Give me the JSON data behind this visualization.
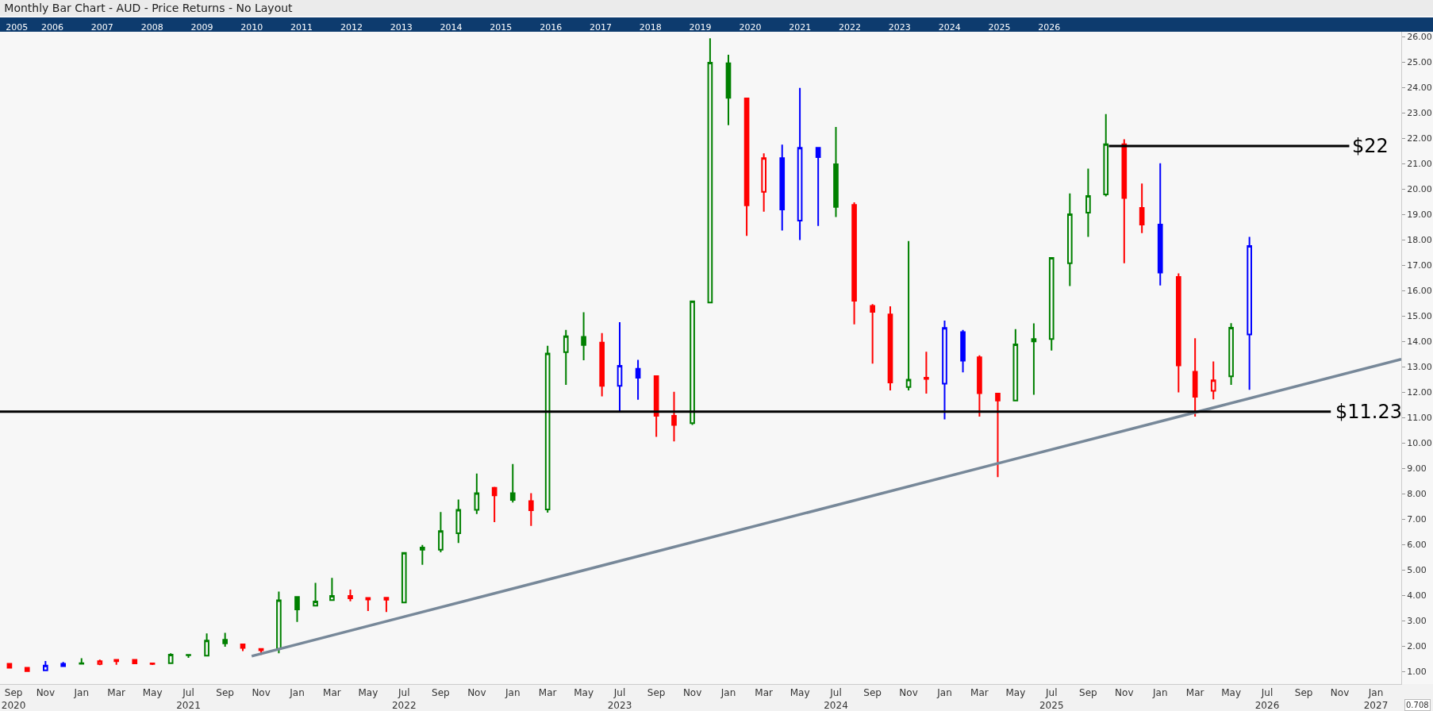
{
  "chart_data": {
    "type": "candlestick",
    "title": "Monthly Bar Chart - AUD - Price Returns - No Layout",
    "x": [
      "2020-09-15",
      "2020-10-15",
      "2020-11-15",
      "2020-12-15",
      "2021-01-15",
      "2021-02-15",
      "2021-03-15",
      "2021-04-15",
      "2021-05-15",
      "2021-06-15",
      "2021-07-15",
      "2021-08-15",
      "2021-09-15",
      "2021-10-15",
      "2021-11-15",
      "2021-12-15",
      "2022-01-15",
      "2022-02-15",
      "2022-03-15",
      "2022-04-15",
      "2022-05-15",
      "2022-06-15",
      "2022-07-15",
      "2022-08-15",
      "2022-09-15",
      "2022-10-15",
      "2022-11-15",
      "2022-12-15",
      "2023-01-15",
      "2023-02-15",
      "2023-03-15",
      "2023-04-15",
      "2023-05-15",
      "2023-06-15",
      "2023-07-15",
      "2023-08-15",
      "2023-09-15",
      "2023-10-15",
      "2023-11-15",
      "2023-12-15",
      "2024-01-15",
      "2024-02-15",
      "2024-03-15",
      "2024-04-15",
      "2024-05-15",
      "2024-06-15",
      "2024-07-15",
      "2024-08-15",
      "2024-09-15",
      "2024-10-15",
      "2024-11-15",
      "2024-12-15",
      "2025-01-15",
      "2025-02-15",
      "2025-03-15",
      "2025-04-15",
      "2025-05-15",
      "2025-06-15",
      "2025-07-15",
      "2025-08-15",
      "2025-09-15",
      "2025-10-15",
      "2025-11-15",
      "2025-12-15",
      "2026-01-15",
      "2026-02-15",
      "2026-03-15",
      "2026-04-15",
      "2026-05-15",
      "2026-06-15"
    ],
    "ohlc": [
      [
        1.3,
        1.32,
        1.13,
        1.14
      ],
      [
        1.14,
        1.15,
        1.0,
        1.01
      ],
      [
        1.04,
        1.41,
        1.02,
        1.23
      ],
      [
        1.2,
        1.37,
        1.18,
        1.3
      ],
      [
        1.3,
        1.52,
        1.29,
        1.32
      ],
      [
        1.29,
        1.46,
        1.24,
        1.4
      ],
      [
        1.4,
        1.46,
        1.26,
        1.45
      ],
      [
        1.45,
        1.46,
        1.3,
        1.31
      ],
      [
        1.29,
        1.33,
        1.25,
        1.31
      ],
      [
        1.32,
        1.71,
        1.3,
        1.66
      ],
      [
        1.65,
        1.66,
        1.53,
        1.63
      ],
      [
        1.62,
        2.49,
        1.6,
        2.21
      ],
      [
        2.24,
        2.52,
        1.97,
        2.1
      ],
      [
        2.06,
        2.07,
        1.8,
        1.92
      ],
      [
        1.88,
        1.9,
        1.65,
        1.83
      ],
      [
        1.88,
        4.14,
        1.71,
        3.8
      ],
      [
        3.93,
        3.95,
        2.95,
        3.44
      ],
      [
        3.59,
        4.49,
        3.57,
        3.75
      ],
      [
        3.81,
        4.68,
        3.79,
        3.97
      ],
      [
        3.97,
        4.22,
        3.76,
        3.88
      ],
      [
        3.83,
        3.92,
        3.38,
        3.89
      ],
      [
        3.9,
        3.93,
        3.34,
        3.82
      ],
      [
        3.71,
        5.69,
        3.69,
        5.67
      ],
      [
        5.88,
        5.98,
        5.2,
        5.79
      ],
      [
        5.79,
        7.28,
        5.69,
        6.53
      ],
      [
        6.44,
        7.77,
        6.06,
        7.36
      ],
      [
        7.36,
        8.79,
        7.2,
        8.02
      ],
      [
        8.23,
        8.27,
        6.88,
        7.93
      ],
      [
        8.02,
        9.17,
        7.65,
        7.75
      ],
      [
        7.71,
        8.02,
        6.73,
        7.35
      ],
      [
        7.38,
        13.83,
        7.25,
        13.52
      ],
      [
        13.58,
        14.45,
        12.29,
        14.2
      ],
      [
        14.18,
        15.15,
        13.26,
        13.86
      ],
      [
        13.95,
        14.33,
        11.83,
        12.25
      ],
      [
        12.25,
        14.76,
        11.21,
        13.04
      ],
      [
        12.92,
        13.27,
        11.7,
        12.57
      ],
      [
        12.63,
        12.65,
        10.24,
        11.07
      ],
      [
        11.07,
        12.01,
        10.06,
        10.71
      ],
      [
        10.78,
        15.6,
        10.71,
        15.58
      ],
      [
        15.53,
        25.94,
        15.5,
        24.98
      ],
      [
        24.96,
        25.29,
        22.52,
        23.6
      ],
      [
        23.57,
        23.6,
        18.16,
        19.36
      ],
      [
        19.89,
        21.41,
        19.11,
        21.22
      ],
      [
        21.22,
        21.75,
        18.37,
        19.2
      ],
      [
        18.76,
        23.99,
        17.99,
        21.63
      ],
      [
        21.63,
        21.65,
        18.55,
        21.26
      ],
      [
        20.98,
        22.45,
        18.9,
        19.3
      ],
      [
        19.38,
        19.48,
        14.67,
        15.6
      ],
      [
        15.4,
        15.47,
        13.12,
        15.16
      ],
      [
        15.06,
        15.38,
        12.07,
        12.38
      ],
      [
        12.2,
        17.95,
        12.07,
        12.49
      ],
      [
        12.57,
        13.59,
        11.94,
        12.52
      ],
      [
        12.33,
        14.82,
        10.93,
        14.53
      ],
      [
        14.37,
        14.45,
        12.78,
        13.24
      ],
      [
        13.37,
        13.45,
        11.04,
        11.96
      ],
      [
        11.94,
        11.96,
        8.65,
        11.67
      ],
      [
        11.67,
        14.48,
        11.64,
        13.88
      ],
      [
        14.0,
        14.71,
        11.9,
        14.09
      ],
      [
        14.09,
        17.32,
        13.64,
        17.29
      ],
      [
        17.08,
        19.83,
        16.18,
        19.01
      ],
      [
        19.07,
        20.81,
        18.12,
        19.73
      ],
      [
        19.79,
        22.96,
        19.71,
        21.77
      ],
      [
        21.77,
        21.96,
        17.08,
        19.65
      ],
      [
        19.26,
        20.22,
        18.27,
        18.6
      ],
      [
        18.6,
        21.02,
        16.2,
        16.71
      ],
      [
        16.54,
        16.68,
        11.99,
        13.05
      ],
      [
        12.8,
        14.12,
        11.04,
        11.82
      ],
      [
        12.05,
        13.21,
        11.72,
        12.47
      ],
      [
        12.62,
        14.72,
        12.29,
        14.54
      ],
      [
        14.27,
        18.12,
        12.09,
        17.76
      ]
    ],
    "colors": [
      "#ff0000",
      "#ff0000",
      "#0000ff",
      "#0000ff",
      "#008000",
      "#ff0000",
      "#ff0000",
      "#ff0000",
      "#ff0000",
      "#008000",
      "#008000",
      "#008000",
      "#008000",
      "#ff0000",
      "#ff0000",
      "#008000",
      "#008000",
      "#008000",
      "#008000",
      "#ff0000",
      "#ff0000",
      "#ff0000",
      "#008000",
      "#008000",
      "#008000",
      "#008000",
      "#008000",
      "#ff0000",
      "#008000",
      "#ff0000",
      "#008000",
      "#008000",
      "#008000",
      "#ff0000",
      "#0000ff",
      "#0000ff",
      "#ff0000",
      "#ff0000",
      "#008000",
      "#008000",
      "#008000",
      "#ff0000",
      "#ff0000",
      "#0000ff",
      "#0000ff",
      "#0000ff",
      "#008000",
      "#ff0000",
      "#ff0000",
      "#ff0000",
      "#008000",
      "#ff0000",
      "#0000ff",
      "#0000ff",
      "#ff0000",
      "#ff0000",
      "#008000",
      "#008000",
      "#008000",
      "#008000",
      "#008000",
      "#008000",
      "#ff0000",
      "#ff0000",
      "#0000ff",
      "#ff0000",
      "#ff0000",
      "#ff0000",
      "#008000",
      "#0000ff"
    ],
    "series": [
      {
        "type": "line",
        "color": "#778899",
        "x": [
          "2021-10-30",
          "2027-02-27"
        ],
        "values": [
          1.6,
          13.3
        ]
      },
      {
        "type": "line",
        "name": "$22",
        "color": "#000000",
        "x": [
          "2025-10-20",
          "2026-12-01"
        ],
        "values": [
          21.7,
          21.7
        ]
      }
    ],
    "ref_lines": [
      {
        "axis": "y",
        "value": 11.23,
        "label": "$11.23",
        "color": "#000000"
      }
    ],
    "xlim": [
      "2020-08-30",
      "2027-02-27"
    ],
    "xticks": [
      {
        "value": "2020-09-22",
        "label": "Sep\n2020"
      },
      {
        "value": "2020-11-15",
        "label": "Nov"
      },
      {
        "value": "2021-01-15",
        "label": "Jan"
      },
      {
        "value": "2021-03-15",
        "label": "Mar"
      },
      {
        "value": "2021-05-15",
        "label": "May"
      },
      {
        "value": "2021-07-15",
        "label": "Jul\n2021"
      },
      {
        "value": "2021-09-15",
        "label": "Sep"
      },
      {
        "value": "2021-11-15",
        "label": "Nov"
      },
      {
        "value": "2022-01-15",
        "label": "Jan"
      },
      {
        "value": "2022-03-15",
        "label": "Mar"
      },
      {
        "value": "2022-05-15",
        "label": "May"
      },
      {
        "value": "2022-07-15",
        "label": "Jul\n2022"
      },
      {
        "value": "2022-09-15",
        "label": "Sep"
      },
      {
        "value": "2022-11-15",
        "label": "Nov"
      },
      {
        "value": "2023-01-15",
        "label": "Jan"
      },
      {
        "value": "2023-03-15",
        "label": "Mar"
      },
      {
        "value": "2023-05-15",
        "label": "May"
      },
      {
        "value": "2023-07-15",
        "label": "Jul\n2023"
      },
      {
        "value": "2023-09-15",
        "label": "Sep"
      },
      {
        "value": "2023-11-15",
        "label": "Nov"
      },
      {
        "value": "2024-01-15",
        "label": "Jan"
      },
      {
        "value": "2024-03-15",
        "label": "Mar"
      },
      {
        "value": "2024-05-15",
        "label": "May"
      },
      {
        "value": "2024-07-15",
        "label": "Jul\n2024"
      },
      {
        "value": "2024-09-15",
        "label": "Sep"
      },
      {
        "value": "2024-11-15",
        "label": "Nov"
      },
      {
        "value": "2025-01-15",
        "label": "Jan"
      },
      {
        "value": "2025-03-15",
        "label": "Mar"
      },
      {
        "value": "2025-05-15",
        "label": "May"
      },
      {
        "value": "2025-07-15",
        "label": "Jul\n2025"
      },
      {
        "value": "2025-09-15",
        "label": "Sep"
      },
      {
        "value": "2025-11-15",
        "label": "Nov"
      },
      {
        "value": "2026-01-15",
        "label": "Jan"
      },
      {
        "value": "2026-03-15",
        "label": "Mar"
      },
      {
        "value": "2026-05-15",
        "label": "May"
      },
      {
        "value": "2026-07-15",
        "label": "Jul\n2026"
      },
      {
        "value": "2026-09-15",
        "label": "Sep"
      },
      {
        "value": "2026-11-15",
        "label": "Nov"
      },
      {
        "value": "2027-01-15",
        "label": "Jan\n2027"
      }
    ],
    "x2lim": [
      "2005-03-13",
      "2033-04-25"
    ],
    "x2ticks": [
      {
        "value": "2005-07-15",
        "label": "2005"
      },
      {
        "value": "2006-04",
        "label": "2006"
      },
      {
        "value": "2007-04",
        "label": "2007"
      },
      {
        "value": "2008-04",
        "label": "2008"
      },
      {
        "value": "2009-04",
        "label": "2009"
      },
      {
        "value": "2010-04",
        "label": "2010"
      },
      {
        "value": "2011-04",
        "label": "2011"
      },
      {
        "value": "2012-04",
        "label": "2012"
      },
      {
        "value": "2013-04",
        "label": "2013"
      },
      {
        "value": "2014-04",
        "label": "2014"
      },
      {
        "value": "2015-04",
        "label": "2015"
      },
      {
        "value": "2016-04",
        "label": "2016"
      },
      {
        "value": "2017-04",
        "label": "2017"
      },
      {
        "value": "2018-04",
        "label": "2018"
      },
      {
        "value": "2019-04",
        "label": "2019"
      },
      {
        "value": "2020-04",
        "label": "2020"
      },
      {
        "value": "2021-04",
        "label": "2021"
      },
      {
        "value": "2022-04",
        "label": "2022"
      },
      {
        "value": "2023-04",
        "label": "2023"
      },
      {
        "value": "2024-04",
        "label": "2024"
      },
      {
        "value": "2025-04",
        "label": "2025"
      },
      {
        "value": "2026-04",
        "label": "2026"
      }
    ],
    "ylim": [
      0.5,
      26.2
    ],
    "yticks": [
      {
        "value": 1,
        "label": "1.00"
      },
      {
        "value": 2,
        "label": "2.00"
      },
      {
        "value": 3,
        "label": "3.00"
      },
      {
        "value": 4,
        "label": "4.00"
      },
      {
        "value": 5,
        "label": "5.00"
      },
      {
        "value": 6,
        "label": "6.00"
      },
      {
        "value": 7,
        "label": "7.00"
      },
      {
        "value": 8,
        "label": "8.00"
      },
      {
        "value": 9,
        "label": "9.00"
      },
      {
        "value": 10,
        "label": "10.00"
      },
      {
        "value": 11,
        "label": "11.00"
      },
      {
        "value": 12,
        "label": "12.00"
      },
      {
        "value": 13,
        "label": "13.00"
      },
      {
        "value": 14,
        "label": "14.00"
      },
      {
        "value": 15,
        "label": "15.00"
      },
      {
        "value": 16,
        "label": "16.00"
      },
      {
        "value": 17,
        "label": "17.00"
      },
      {
        "value": 18,
        "label": "18.00"
      },
      {
        "value": 19,
        "label": "19.00"
      },
      {
        "value": 20,
        "label": "20.00"
      },
      {
        "value": 21,
        "label": "21.00"
      },
      {
        "value": 22,
        "label": "22.00"
      },
      {
        "value": 23,
        "label": "23.00"
      },
      {
        "value": 24,
        "label": "24.00"
      },
      {
        "value": 25,
        "label": "25.00"
      },
      {
        "value": 26,
        "label": "26.00"
      }
    ],
    "annotations": [
      "0.708"
    ],
    "grid": false,
    "legend": false
  }
}
